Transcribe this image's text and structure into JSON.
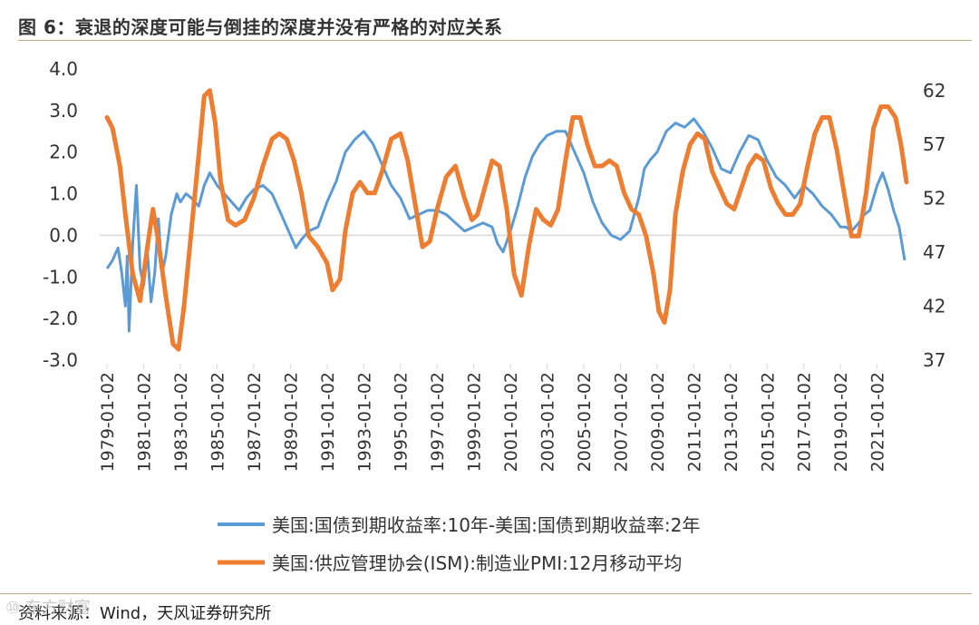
{
  "title": "图 6：衰退的深度可能与倒挂的深度并没有严格的对应关系",
  "source": "资料来源：Wind，天风证券研究所",
  "watermark": "⑩ 东方财富",
  "colors": {
    "spread": "#5b9bd5",
    "pmi": "#ed7d31",
    "axis": "#d9d9d9",
    "rule": "#c9a878"
  },
  "chart_data": {
    "type": "line",
    "xlabel": "",
    "x_range": [
      1978.6,
      2022.6
    ],
    "x_ticks": [
      "1979-01-02",
      "1981-01-02",
      "1983-01-02",
      "1985-01-02",
      "1987-01-02",
      "1989-01-02",
      "1991-01-02",
      "1993-01-02",
      "1995-01-02",
      "1997-01-02",
      "1999-01-02",
      "2001-01-02",
      "2003-01-02",
      "2005-01-02",
      "2007-01-02",
      "2009-01-02",
      "2011-01-02",
      "2013-01-02",
      "2015-01-02",
      "2017-01-02",
      "2019-01-02",
      "2021-01-02"
    ],
    "y_left": {
      "min": -3.0,
      "max": 4.0,
      "ticks": [
        "4.0",
        "3.0",
        "2.0",
        "1.0",
        "0.0",
        "-1.0",
        "-2.0",
        "-3.0"
      ]
    },
    "y_right": {
      "min": 37,
      "max": 64,
      "ticks": [
        "62",
        "57",
        "52",
        "47",
        "42",
        "37"
      ]
    },
    "series": [
      {
        "name": "美国:国债到期收益率:10年-美国:国债到期收益率:2年",
        "axis": "left",
        "x": [
          1979.0,
          1979.3,
          1979.6,
          1979.8,
          1980.0,
          1980.1,
          1980.2,
          1980.4,
          1980.6,
          1980.8,
          1981.0,
          1981.2,
          1981.4,
          1981.6,
          1981.8,
          1982.0,
          1982.2,
          1982.5,
          1982.8,
          1983.0,
          1983.3,
          1983.6,
          1984.0,
          1984.3,
          1984.6,
          1985.0,
          1985.4,
          1985.8,
          1986.2,
          1986.6,
          1987.0,
          1987.5,
          1988.0,
          1988.5,
          1989.0,
          1989.3,
          1989.6,
          1990.0,
          1990.5,
          1991.0,
          1991.5,
          1992.0,
          1992.5,
          1993.0,
          1993.5,
          1994.0,
          1994.5,
          1995.0,
          1995.5,
          1996.0,
          1996.5,
          1997.0,
          1997.5,
          1998.0,
          1998.5,
          1999.0,
          1999.5,
          2000.0,
          2000.3,
          2000.6,
          2001.0,
          2001.4,
          2001.8,
          2002.2,
          2002.6,
          2003.0,
          2003.5,
          2004.0,
          2004.5,
          2005.0,
          2005.5,
          2006.0,
          2006.5,
          2007.0,
          2007.5,
          2008.0,
          2008.3,
          2008.6,
          2009.0,
          2009.5,
          2010.0,
          2010.5,
          2011.0,
          2011.5,
          2012.0,
          2012.5,
          2013.0,
          2013.5,
          2014.0,
          2014.5,
          2015.0,
          2015.5,
          2016.0,
          2016.5,
          2017.0,
          2017.5,
          2018.0,
          2018.5,
          2019.0,
          2019.3,
          2019.6,
          2020.0,
          2020.3,
          2020.6,
          2021.0,
          2021.3,
          2021.6,
          2021.9,
          2022.2,
          2022.5
        ],
        "values": [
          -0.8,
          -0.6,
          -0.3,
          -0.9,
          -1.7,
          -0.5,
          -2.3,
          -0.2,
          1.2,
          -0.8,
          -1.2,
          -0.4,
          -1.6,
          -0.9,
          0.4,
          -0.9,
          -0.5,
          0.5,
          1.0,
          0.8,
          1.0,
          0.9,
          0.7,
          1.2,
          1.5,
          1.2,
          1.0,
          0.8,
          0.6,
          0.9,
          1.1,
          1.2,
          1.0,
          0.5,
          0.0,
          -0.3,
          -0.1,
          0.1,
          0.2,
          0.8,
          1.3,
          2.0,
          2.3,
          2.5,
          2.2,
          1.7,
          1.2,
          0.9,
          0.4,
          0.5,
          0.6,
          0.6,
          0.5,
          0.3,
          0.1,
          0.2,
          0.3,
          0.2,
          -0.2,
          -0.4,
          0.1,
          0.7,
          1.4,
          1.9,
          2.2,
          2.4,
          2.5,
          2.5,
          2.0,
          1.5,
          0.8,
          0.3,
          0.0,
          -0.1,
          0.1,
          0.9,
          1.6,
          1.8,
          2.0,
          2.5,
          2.7,
          2.6,
          2.8,
          2.5,
          2.1,
          1.6,
          1.5,
          2.0,
          2.4,
          2.3,
          1.8,
          1.4,
          1.2,
          0.9,
          1.2,
          1.0,
          0.7,
          0.5,
          0.2,
          0.2,
          0.1,
          0.3,
          0.5,
          0.6,
          1.2,
          1.5,
          1.1,
          0.6,
          0.2,
          -0.6
        ]
      },
      {
        "name": "美国:供应管理协会(ISM):制造业PMI:12月移动平均",
        "axis": "right",
        "x": [
          1979.0,
          1979.3,
          1979.7,
          1980.0,
          1980.4,
          1980.8,
          1981.2,
          1981.5,
          1981.8,
          1982.2,
          1982.6,
          1982.9,
          1983.2,
          1983.6,
          1984.0,
          1984.3,
          1984.6,
          1984.9,
          1985.2,
          1985.6,
          1986.0,
          1986.5,
          1987.0,
          1987.5,
          1988.0,
          1988.4,
          1988.8,
          1989.2,
          1989.6,
          1990.0,
          1990.5,
          1991.0,
          1991.3,
          1991.7,
          1992.0,
          1992.4,
          1992.8,
          1993.2,
          1993.6,
          1994.0,
          1994.5,
          1995.0,
          1995.4,
          1995.8,
          1996.2,
          1996.6,
          1997.0,
          1997.5,
          1998.0,
          1998.5,
          1998.9,
          1999.2,
          1999.6,
          2000.0,
          2000.4,
          2000.8,
          2001.2,
          2001.6,
          2002.0,
          2002.4,
          2002.8,
          2003.2,
          2003.6,
          2004.0,
          2004.4,
          2004.8,
          2005.2,
          2005.6,
          2006.0,
          2006.4,
          2006.8,
          2007.2,
          2007.6,
          2008.0,
          2008.4,
          2008.8,
          2009.1,
          2009.4,
          2009.7,
          2010.0,
          2010.4,
          2010.8,
          2011.2,
          2011.6,
          2012.0,
          2012.4,
          2012.8,
          2013.2,
          2013.6,
          2014.0,
          2014.4,
          2014.8,
          2015.2,
          2015.6,
          2016.0,
          2016.4,
          2016.8,
          2017.2,
          2017.6,
          2018.0,
          2018.4,
          2018.8,
          2019.2,
          2019.6,
          2020.0,
          2020.4,
          2020.8,
          2021.2,
          2021.6,
          2022.0,
          2022.3,
          2022.6
        ],
        "values": [
          59.5,
          58.5,
          55.0,
          50.5,
          45.0,
          42.5,
          47.5,
          51.0,
          48.0,
          43.0,
          38.5,
          38.0,
          42.0,
          49.0,
          56.0,
          61.5,
          62.0,
          59.0,
          53.5,
          50.0,
          49.5,
          50.0,
          52.0,
          55.0,
          57.5,
          58.0,
          57.5,
          55.5,
          52.5,
          48.5,
          47.5,
          46.0,
          43.5,
          44.5,
          49.0,
          52.5,
          53.5,
          52.5,
          52.5,
          54.5,
          57.5,
          58.0,
          55.5,
          51.5,
          47.5,
          48.0,
          51.0,
          54.0,
          55.0,
          52.0,
          50.0,
          50.5,
          53.0,
          55.5,
          55.0,
          51.0,
          45.0,
          43.0,
          47.5,
          51.0,
          50.0,
          49.5,
          51.0,
          55.5,
          59.5,
          59.5,
          57.0,
          55.0,
          55.0,
          55.5,
          55.0,
          52.5,
          51.0,
          50.5,
          48.5,
          45.0,
          41.5,
          40.5,
          43.5,
          50.5,
          54.5,
          57.0,
          58.0,
          57.5,
          54.5,
          53.0,
          51.5,
          51.0,
          53.0,
          55.0,
          56.0,
          55.5,
          53.0,
          51.5,
          50.5,
          50.5,
          51.5,
          55.0,
          58.0,
          59.5,
          59.5,
          56.5,
          52.5,
          48.5,
          48.5,
          52.5,
          58.5,
          60.5,
          60.5,
          59.5,
          57.0,
          53.5
        ]
      }
    ]
  }
}
